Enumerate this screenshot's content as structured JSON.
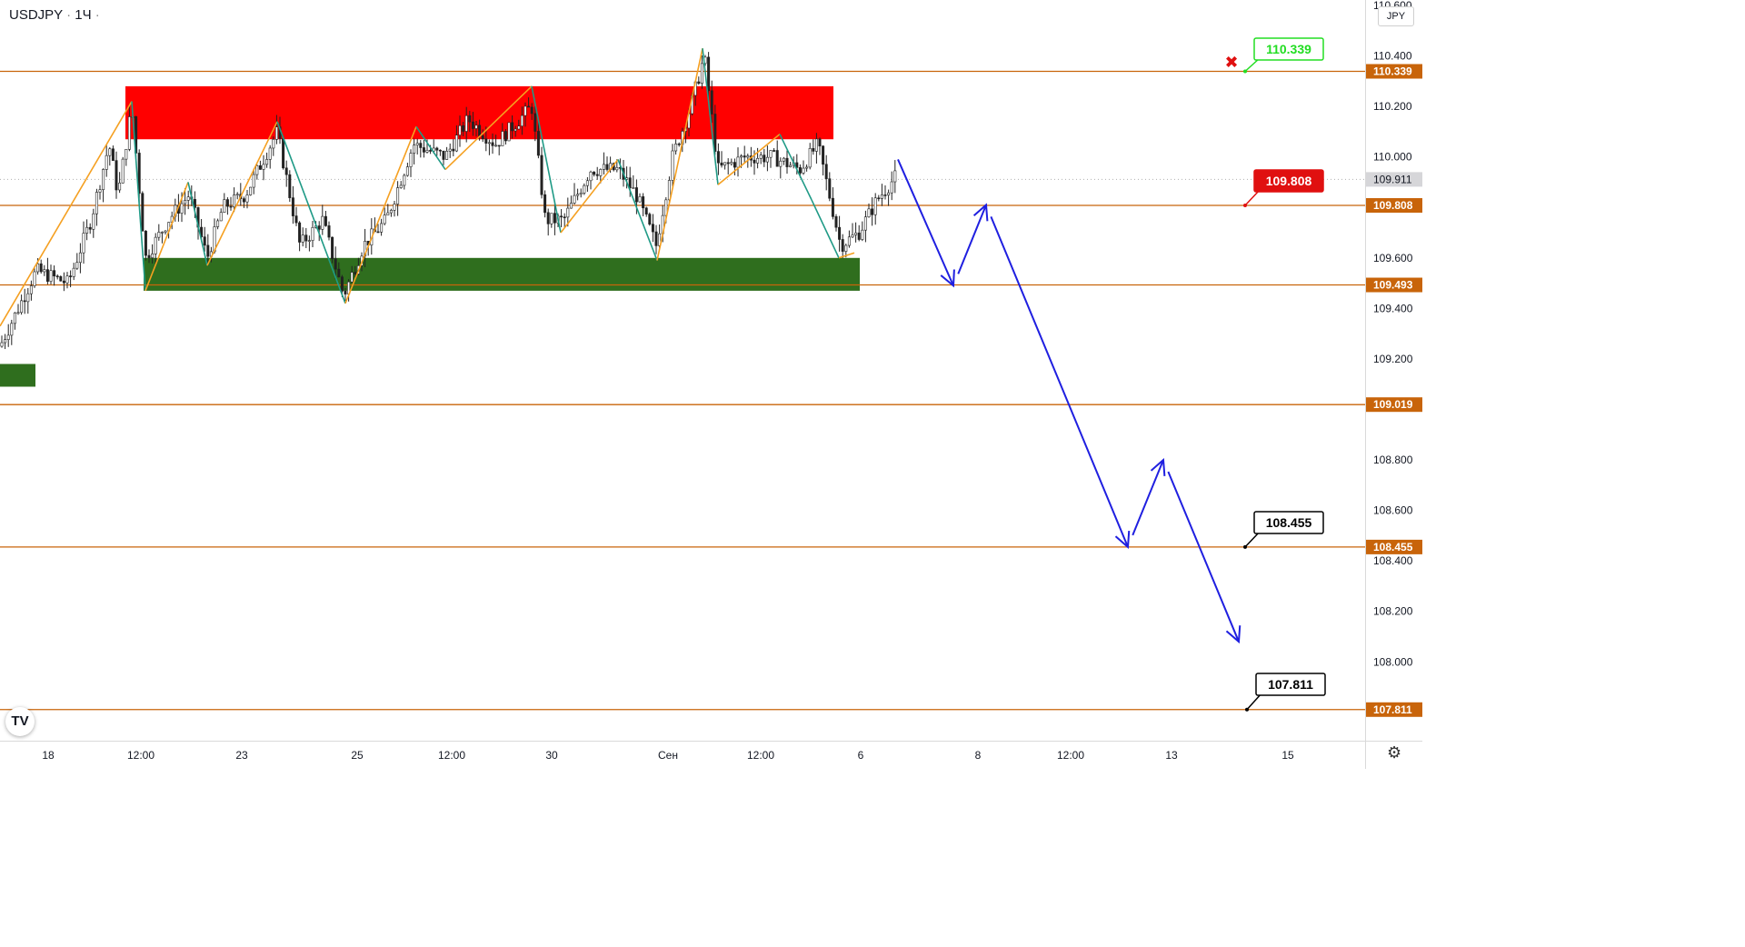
{
  "symbol": {
    "ticker": "USDJPY",
    "interval": "1Ч",
    "separator": "·"
  },
  "currency_button": "JPY",
  "settings_icon": "gear-icon",
  "logo_text": "TV",
  "chart_data": {
    "type": "candlestick",
    "price_axis": {
      "ticks": [
        "110.600",
        "110.400",
        "110.200",
        "110.000",
        "109.600",
        "109.400",
        "109.200",
        "108.800",
        "108.600",
        "108.400",
        "108.200",
        "108.000"
      ],
      "range": [
        107.72,
        110.62
      ]
    },
    "time_axis": {
      "labels": [
        "18",
        "12:00",
        "23",
        "25",
        "12:00",
        "30",
        "Сен",
        "12:00",
        "6",
        "8",
        "12:00",
        "13",
        "15"
      ]
    },
    "horizontal_levels": [
      {
        "value": "110.339",
        "color": "#c8640a"
      },
      {
        "value": "109.808",
        "color": "#c8640a"
      },
      {
        "value": "109.493",
        "color": "#c8640a"
      },
      {
        "value": "109.019",
        "color": "#c8640a"
      },
      {
        "value": "108.455",
        "color": "#c8640a"
      },
      {
        "value": "107.811",
        "color": "#c8640a"
      }
    ],
    "current_price": "109.911",
    "zones": [
      {
        "name": "resistance",
        "top": 110.28,
        "bottom": 110.07,
        "color": "#ff0000"
      },
      {
        "name": "support",
        "top": 109.6,
        "bottom": 109.47,
        "color": "#2f6e1e"
      },
      {
        "name": "support-left",
        "top": 109.18,
        "bottom": 109.09,
        "color": "#2f6e1e"
      }
    ],
    "callouts": [
      {
        "label": "110.339",
        "color": "#22dd22",
        "border": "#22dd22"
      },
      {
        "label": "109.808",
        "color": "#ffffff",
        "border": "#e01010",
        "bg": "#e01010"
      },
      {
        "label": "108.455",
        "color": "#000000",
        "border": "#000000"
      },
      {
        "label": "107.811",
        "color": "#000000",
        "border": "#000000"
      }
    ],
    "stop_marker": "✖",
    "projection_points": [
      109.99,
      109.49,
      109.81,
      108.455,
      108.8,
      108.08
    ]
  },
  "colors": {
    "level": "#c8640a",
    "projection": "#1f1fe0",
    "zigzag_up": "#f5a021",
    "zigzag_down": "#1f9a86"
  }
}
